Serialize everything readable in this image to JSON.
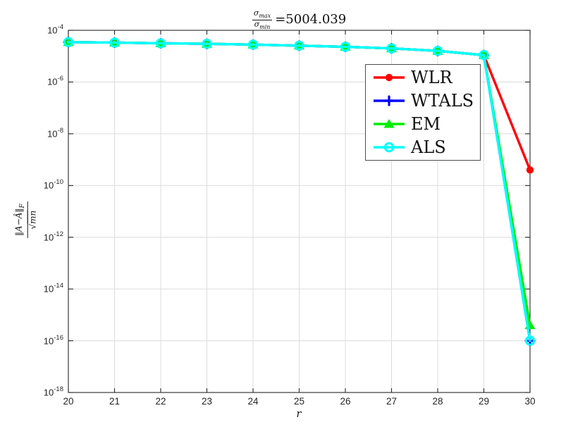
{
  "title": {
    "num_sym": "σ",
    "num_sub": "max",
    "den_sym": "σ",
    "den_sub": "min",
    "value": "=5004.039"
  },
  "axes": {
    "xlabel": "r",
    "ylabel": {
      "num_main": "‖A−Â‖",
      "num_sub": "F",
      "den_radical": "√",
      "den_text": "mn"
    }
  },
  "chart_data": {
    "type": "line",
    "title": "sigma_max/sigma_min = 5004.039",
    "xlabel": "r",
    "ylabel": "||A-Ahat||_F / sqrt(mn)",
    "x": [
      20,
      21,
      22,
      23,
      24,
      25,
      26,
      27,
      28,
      29,
      30
    ],
    "xlim": [
      20,
      30
    ],
    "ylim_exp": [
      -18,
      -4
    ],
    "x_ticks": [
      20,
      21,
      22,
      23,
      24,
      25,
      26,
      27,
      28,
      29,
      30
    ],
    "y_tick_exps": [
      -4,
      -6,
      -8,
      -10,
      -12,
      -14,
      -16,
      -18
    ],
    "y_scale": "log",
    "grid": true,
    "legend_position": "upper-right-inside",
    "series": [
      {
        "name": "WLR",
        "color": "#ff0000",
        "marker": "circle-filled",
        "values": [
          3.5e-05,
          3.35e-05,
          3.15e-05,
          3e-05,
          2.8e-05,
          2.55e-05,
          2.3e-05,
          2e-05,
          1.6e-05,
          1.1e-05,
          4e-10
        ]
      },
      {
        "name": "WTALS",
        "color": "#0000ff",
        "marker": "plus",
        "values": [
          3.5e-05,
          3.35e-05,
          3.15e-05,
          3e-05,
          2.8e-05,
          2.55e-05,
          2.3e-05,
          2e-05,
          1.6e-05,
          1.1e-05,
          1e-16
        ]
      },
      {
        "name": "EM",
        "color": "#00ee00",
        "marker": "triangle-filled",
        "values": [
          3.5e-05,
          3.35e-05,
          3.15e-05,
          3e-05,
          2.8e-05,
          2.55e-05,
          2.3e-05,
          2e-05,
          1.6e-05,
          1.1e-05,
          4e-16
        ]
      },
      {
        "name": "ALS",
        "color": "#00ffff",
        "marker": "circle-open",
        "values": [
          3.5e-05,
          3.35e-05,
          3.15e-05,
          3e-05,
          2.8e-05,
          2.55e-05,
          2.3e-05,
          2e-05,
          1.6e-05,
          1.1e-05,
          1e-16
        ]
      }
    ],
    "colors": {
      "grid": "#dcdcdc",
      "axis": "#262626",
      "background": "#ffffff"
    }
  }
}
